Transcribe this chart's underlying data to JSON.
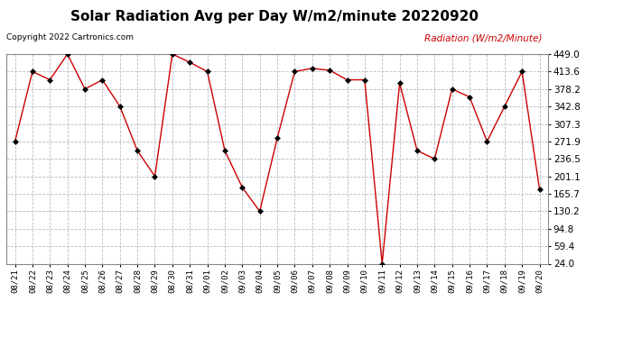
{
  "title": "Solar Radiation Avg per Day W/m2/minute 20220920",
  "copyright_text": "Copyright 2022 Cartronics.com",
  "legend_label": "Radiation (W/m2/Minute)",
  "x_labels": [
    "08/21",
    "08/22",
    "08/23",
    "08/24",
    "08/25",
    "08/26",
    "08/27",
    "08/28",
    "08/29",
    "08/30",
    "08/31",
    "09/01",
    "09/02",
    "09/03",
    "09/04",
    "09/05",
    "09/06",
    "09/07",
    "09/08",
    "09/09",
    "09/10",
    "09/11",
    "09/12",
    "09/13",
    "09/14",
    "09/15",
    "09/16",
    "09/17",
    "09/18",
    "09/19",
    "09/20"
  ],
  "y_values": [
    271.9,
    413.6,
    396.8,
    449.0,
    378.2,
    396.8,
    342.8,
    253.3,
    201.1,
    449.0,
    432.3,
    413.6,
    253.3,
    178.6,
    130.2,
    278.5,
    413.6,
    420.0,
    416.0,
    396.8,
    396.8,
    24.0,
    390.0,
    253.3,
    236.5,
    378.2,
    362.0,
    271.9,
    342.8,
    413.6,
    175.0
  ],
  "y_ticks": [
    24.0,
    59.4,
    94.8,
    130.2,
    165.7,
    201.1,
    236.5,
    271.9,
    307.3,
    342.8,
    378.2,
    413.6,
    449.0
  ],
  "y_min": 24.0,
  "y_max": 449.0,
  "line_color": "#cc0000",
  "marker_color": "#000000",
  "title_fontsize": 11,
  "background_color": "#ffffff",
  "plot_bg_color": "#ffffff",
  "grid_color": "#bbbbbb",
  "copyright_color": "#000000",
  "legend_color": "#cc0000"
}
